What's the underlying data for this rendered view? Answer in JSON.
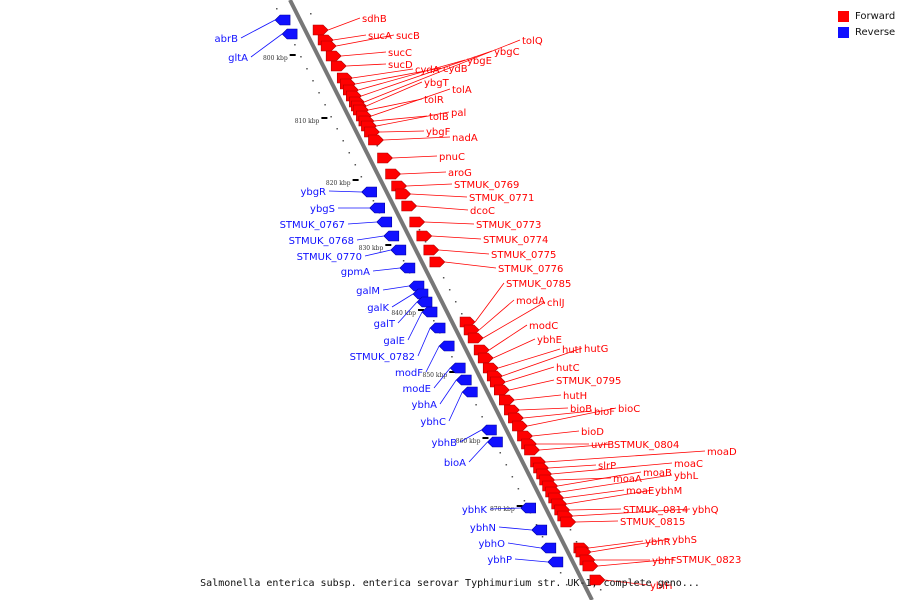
{
  "legend": {
    "forward": {
      "label": "Forward",
      "color": "#ff0000"
    },
    "reverse": {
      "label": "Reverse",
      "color": "#1010ff"
    }
  },
  "caption": "Salmonella enterica subsp. enterica serovar Typhimurium str. UK-1, complete geno...",
  "scale_labels": [
    "800 kbp",
    "810 kbp",
    "820 kbp",
    "830 kbp",
    "840 kbp",
    "850 kbp",
    "860 kbp",
    "870 kbp"
  ],
  "forward_genes": [
    "sdhB",
    "sucA",
    "sucB",
    "sucC",
    "sucD",
    "cydA",
    "cydB",
    "ybgE",
    "ybgC",
    "tolQ",
    "ybgT",
    "tolR",
    "tolA",
    "tolB",
    "pal",
    "ybgF",
    "nadA",
    "pnuC",
    "aroG",
    "STMUK_0769",
    "STMUK_0771",
    "dcoC",
    "STMUK_0773",
    "STMUK_0774",
    "STMUK_0775",
    "STMUK_0776",
    "STMUK_0785",
    "modA",
    "chlJ",
    "modC",
    "ybhE",
    "hutI",
    "hutG",
    "hutC",
    "STMUK_0795",
    "hutH",
    "bioB",
    "bioF",
    "bioC",
    "bioD",
    "uvrB",
    "STMUK_0804",
    "moaD",
    "slrP",
    "moaC",
    "moaA",
    "moaB",
    "ybhL",
    "moaE",
    "ybhM",
    "STMUK_0814",
    "ybhQ",
    "STMUK_0815",
    "ybhR",
    "ybhS",
    "ybhF",
    "STMUK_0823",
    "ybiH"
  ],
  "reverse_genes": [
    "abrB",
    "gltA",
    "ybgR",
    "ybgS",
    "STMUK_0767",
    "STMUK_0768",
    "STMUK_0770",
    "gpmA",
    "galM",
    "galK",
    "galT",
    "galE",
    "STMUK_0782",
    "modF",
    "modE",
    "ybhA",
    "ybhC",
    "ybhB",
    "bioA",
    "ybhK",
    "ybhN",
    "ybhO",
    "ybhP"
  ]
}
